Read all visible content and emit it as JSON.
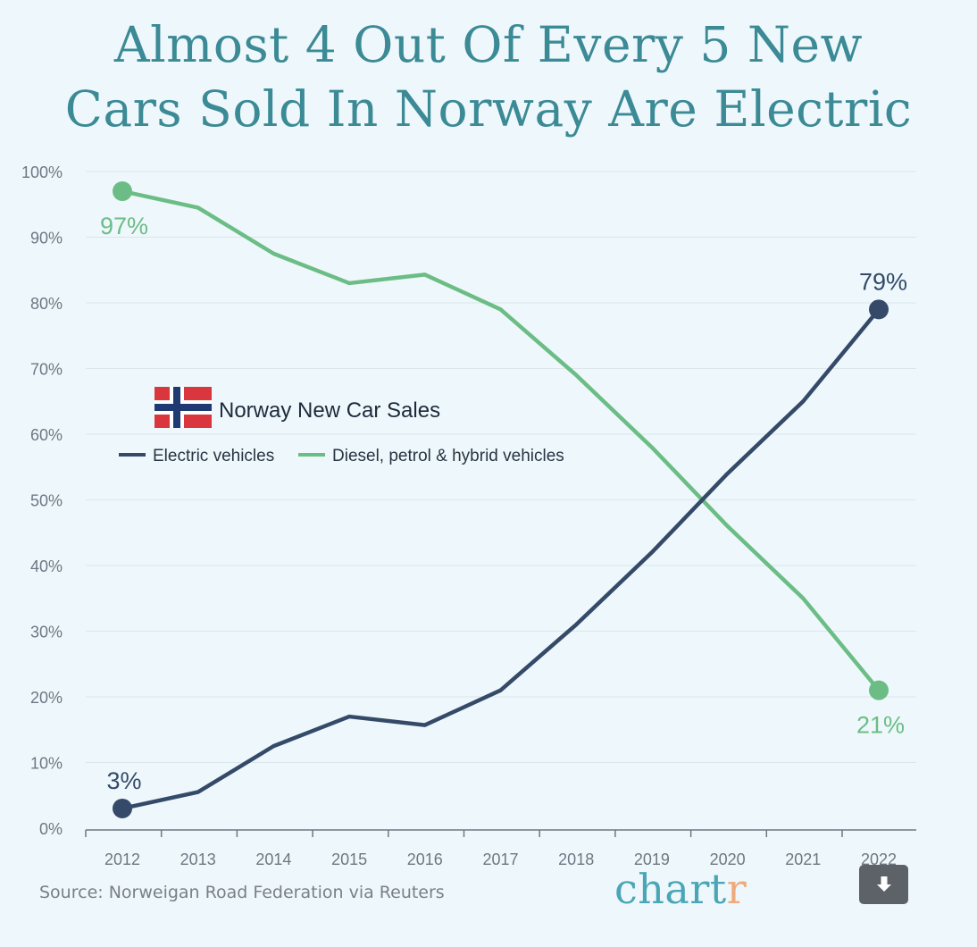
{
  "title_lines": [
    "Almost 4 Out Of Every 5 New",
    "Cars Sold In Norway Are Electric"
  ],
  "legend_title": "Norway New Car Sales",
  "source": "Source: Norweigan Road Federation via Reuters",
  "brand": {
    "main": "chart",
    "accent": "r"
  },
  "download_icon": "download-icon",
  "colors": {
    "electric": "#344a68",
    "other": "#6cbd85",
    "title": "#3b8a95",
    "grid": "#dbe6ec",
    "axis": "#6e7782"
  },
  "chart_data": {
    "type": "line",
    "title": "Almost 4 Out Of Every 5 New Cars Sold In Norway Are Electric",
    "xlabel": "",
    "ylabel": "",
    "x": [
      "2012",
      "2013",
      "2014",
      "2015",
      "2016",
      "2017",
      "2018",
      "2019",
      "2020",
      "2021",
      "2022"
    ],
    "ylim": [
      0,
      100
    ],
    "yticks": [
      "0%",
      "10%",
      "20%",
      "30%",
      "40%",
      "50%",
      "60%",
      "70%",
      "80%",
      "90%",
      "100%"
    ],
    "grid": true,
    "legend_position": "middle-left",
    "series": [
      {
        "name": "Electric vehicles",
        "color": "#344a68",
        "values": [
          3,
          5.5,
          12.5,
          17,
          15.7,
          21,
          31,
          42,
          54,
          65,
          79
        ]
      },
      {
        "name": "Diesel, petrol & hybrid vehicles",
        "color": "#6cbd85",
        "values": [
          97,
          94.5,
          87.5,
          83,
          84.3,
          79,
          69,
          58,
          46,
          35,
          21
        ]
      }
    ],
    "annotations": [
      {
        "series": 0,
        "index": 0,
        "label": "3%"
      },
      {
        "series": 0,
        "index": 10,
        "label": "79%"
      },
      {
        "series": 1,
        "index": 0,
        "label": "97%"
      },
      {
        "series": 1,
        "index": 10,
        "label": "21%"
      }
    ]
  }
}
